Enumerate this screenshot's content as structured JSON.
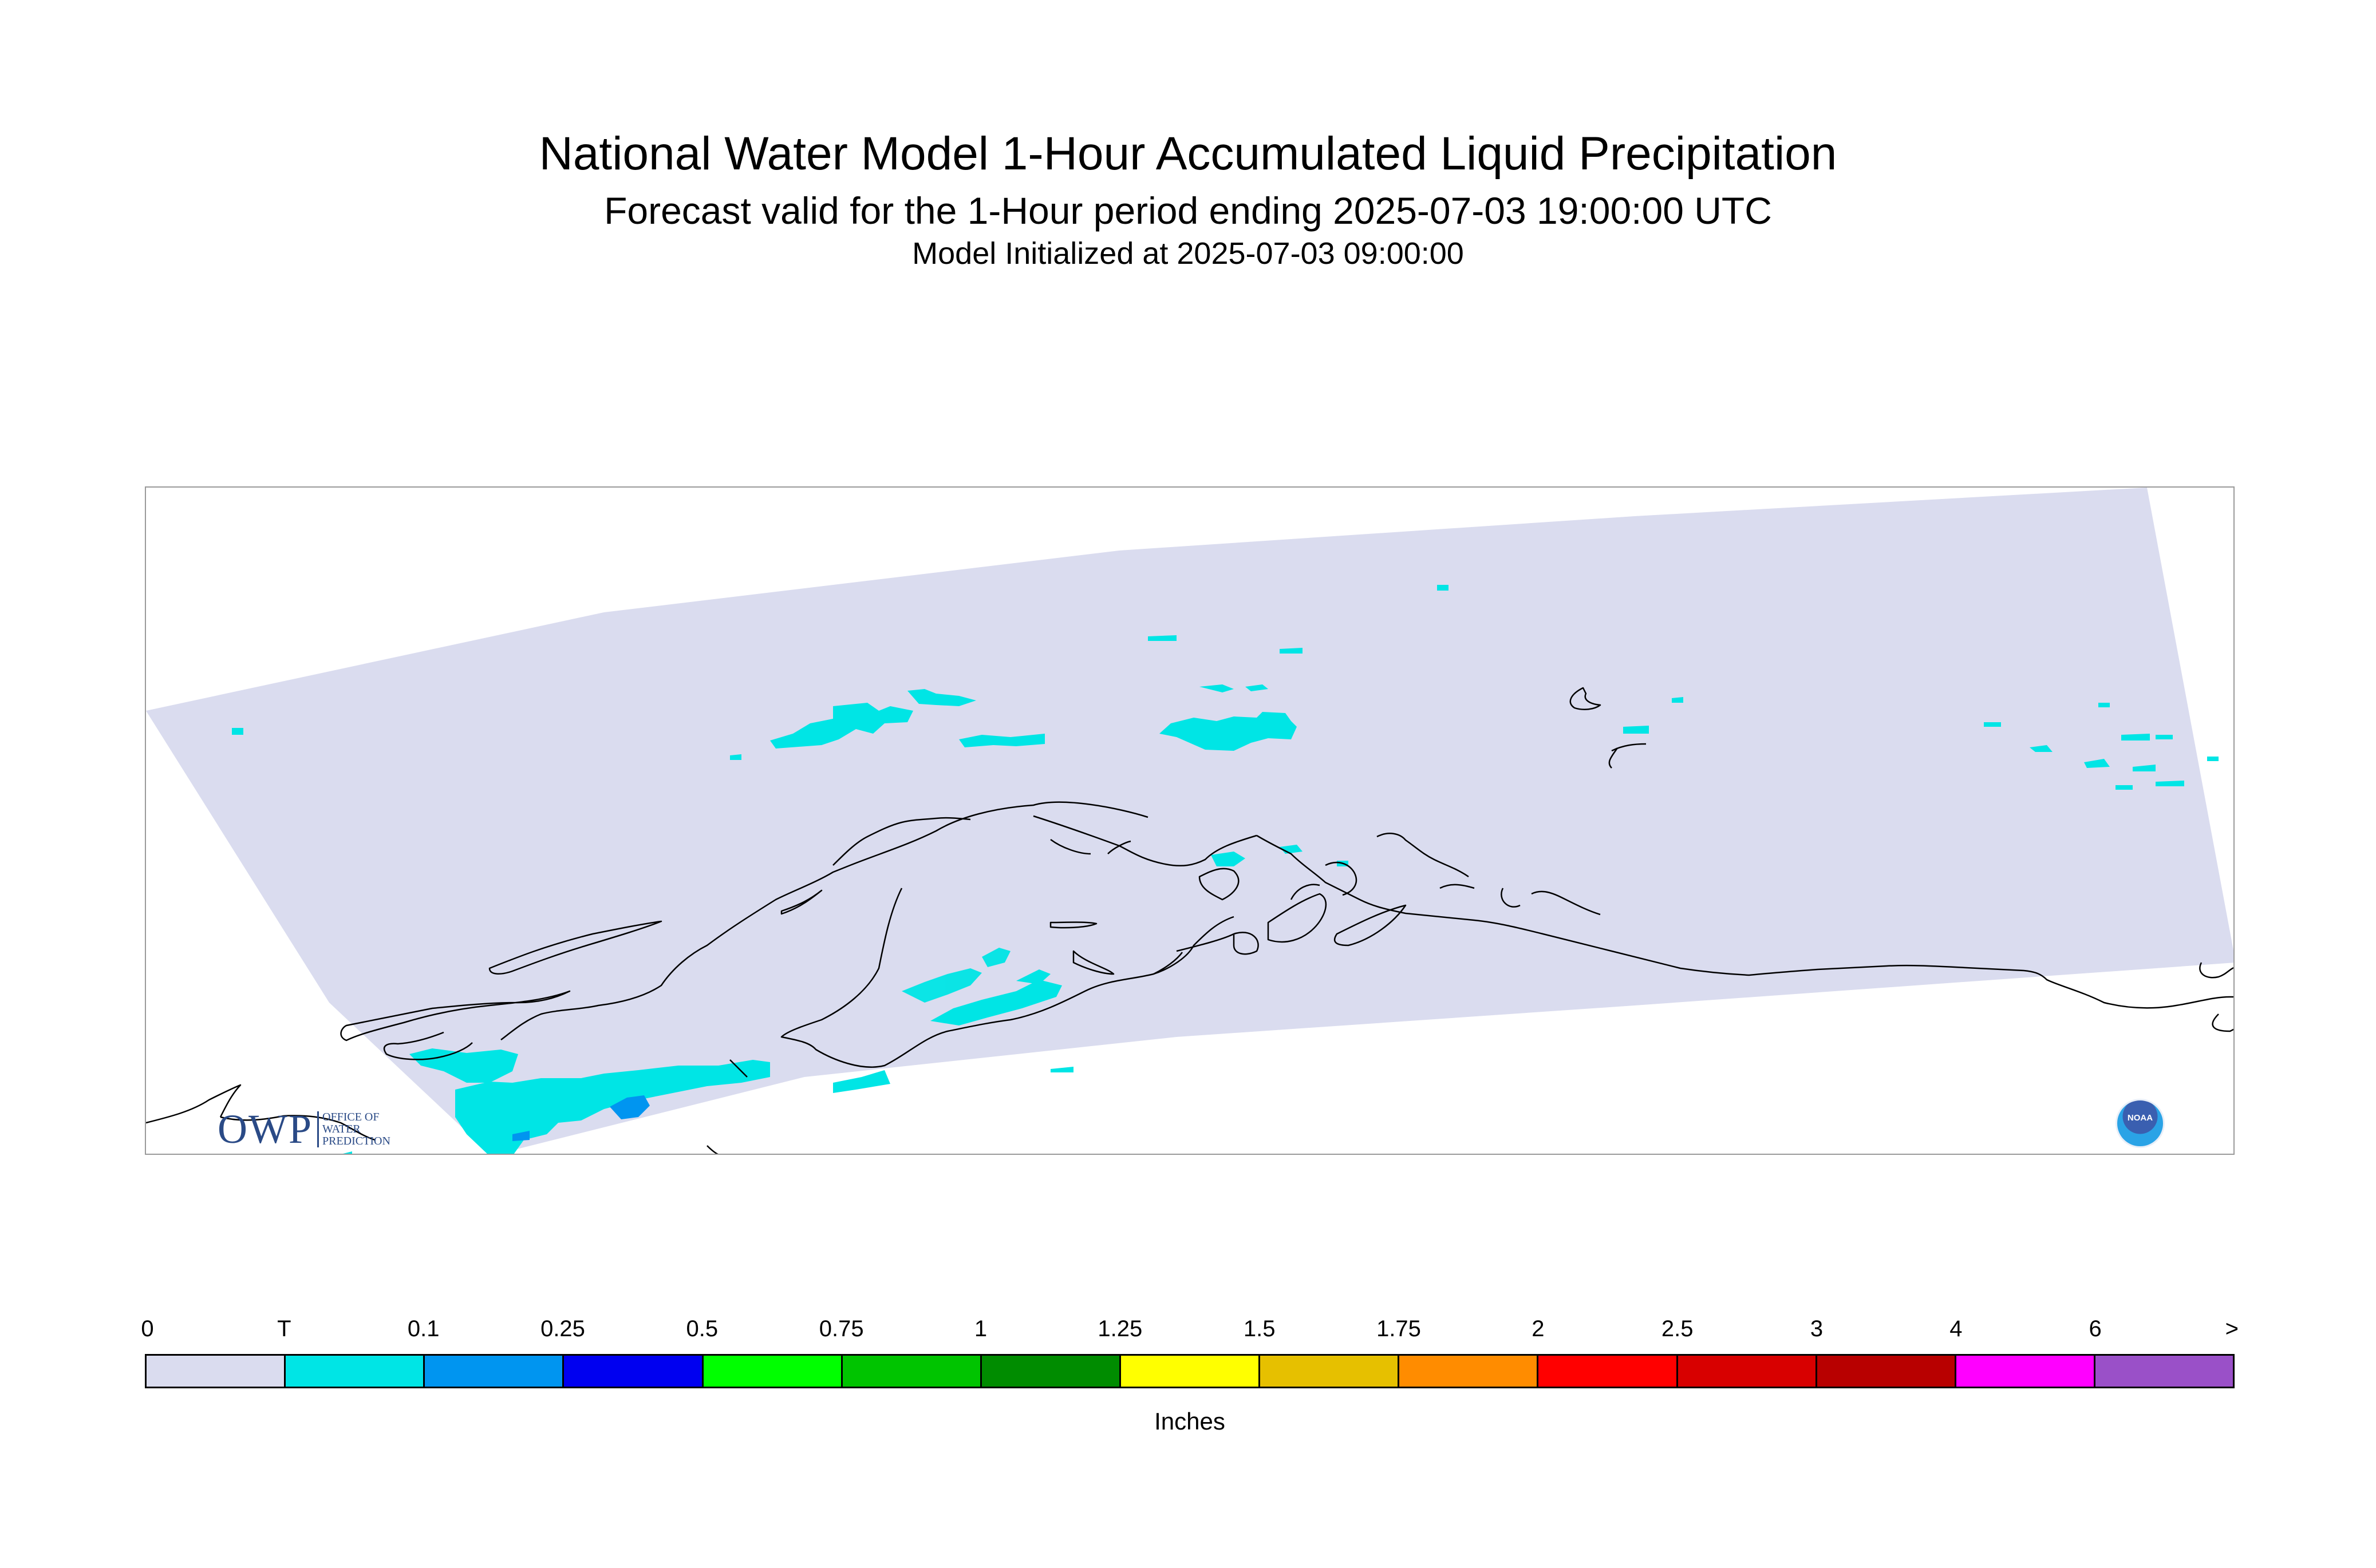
{
  "title": {
    "line1": "National Water Model 1-Hour Accumulated Liquid Precipitation",
    "line2": "Forecast valid for the 1-Hour period ending 2025-07-03 19:00:00 UTC",
    "line3": "Model Initialized at 2025-07-03 09:00:00"
  },
  "legend": {
    "ticks": [
      "0",
      "T",
      "0.1",
      "0.25",
      "0.5",
      "0.75",
      "1",
      "1.25",
      "1.5",
      "1.75",
      "2",
      "2.5",
      "3",
      "4",
      "6",
      ">"
    ],
    "colors": [
      "#dadcef",
      "#00e5e5",
      "#0095f0",
      "#0000f0",
      "#00ff00",
      "#00c400",
      "#008c00",
      "#ffff00",
      "#e6c000",
      "#ff8c00",
      "#ff0000",
      "#d80000",
      "#b80000",
      "#ff00ff",
      "#9a50c8"
    ],
    "units": "Inches"
  },
  "logos": {
    "owp": {
      "letters": "OWP",
      "subtitle": [
        "OFFICE OF",
        "WATER",
        "PREDICTION"
      ]
    },
    "noaa": {
      "text": "NOAA"
    }
  },
  "map": {
    "domain_fill": "#dadcef",
    "coastline_color": "#000000",
    "precip_trace_color": "#00e5e5",
    "precip_light_color": "#0095f0"
  }
}
